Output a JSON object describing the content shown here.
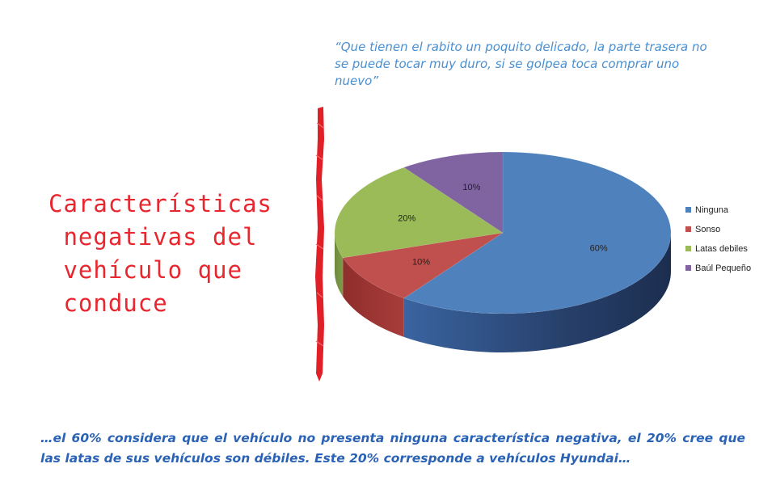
{
  "quote": {
    "text": "“Que tienen el rabito un poquito delicado, la parte trasera no se puede tocar muy duro, si se golpea toca comprar uno nuevo”"
  },
  "title": {
    "line1": "Características",
    "line2": " negativas del",
    "line3": " vehículo que",
    "line4": " conduce"
  },
  "conclusion": {
    "text": "…el 60% considera que el vehículo no presenta ninguna característica negativa, el 20% cree que las latas de sus vehículos son débiles. Este 20% corresponde a vehículos Hyundai…"
  },
  "chart_data": {
    "type": "pie",
    "style": "3d",
    "categories": [
      "Ninguna",
      "Sonso",
      "Latas debiles",
      "Baúl Pequeño"
    ],
    "values": [
      60,
      10,
      20,
      10
    ],
    "data_labels": [
      "60%",
      "10%",
      "20%",
      "10%"
    ],
    "colors": [
      "#4f81bd",
      "#c0504d",
      "#9bbb59",
      "#8064a2"
    ],
    "legend_position": "right"
  },
  "colors": {
    "title": "#e8262e",
    "quote": "#4a8fd0",
    "conclusion": "#2a62b5",
    "divider": "#e01f26"
  }
}
